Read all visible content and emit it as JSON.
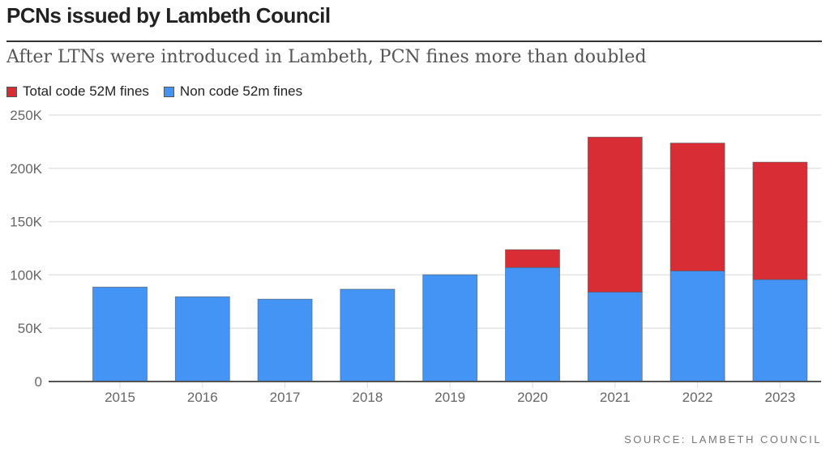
{
  "chart_data": {
    "type": "bar",
    "stacked": true,
    "title": "PCNs issued by Lambeth Council",
    "subtitle": "After LTNs were introduced in Lambeth, PCN fines more than doubled",
    "source": "SOURCE: LAMBETH COUNCIL",
    "xlabel": "",
    "ylabel": "",
    "ylim": [
      0,
      250000
    ],
    "yticks": [
      0,
      50000,
      100000,
      150000,
      200000,
      250000
    ],
    "ytick_labels": [
      "0",
      "50K",
      "100K",
      "150K",
      "200K",
      "250K"
    ],
    "grid": true,
    "legend_position": "top-left",
    "categories": [
      "2015",
      "2016",
      "2017",
      "2018",
      "2019",
      "2020",
      "2021",
      "2022",
      "2023"
    ],
    "series": [
      {
        "name": "Non code 52m fines",
        "color": "#4394f5",
        "values": [
          88600,
          79500,
          77300,
          86600,
          100200,
          107000,
          83900,
          103800,
          95700
        ]
      },
      {
        "name": "Total code 52M fines",
        "color": "#d92d35",
        "values": [
          0,
          0,
          0,
          0,
          0,
          16700,
          145400,
          119900,
          110100
        ]
      }
    ],
    "legend": [
      {
        "label": "Total code 52M fines",
        "color": "#d92d35"
      },
      {
        "label": "Non code 52m fines",
        "color": "#4394f5"
      }
    ]
  }
}
